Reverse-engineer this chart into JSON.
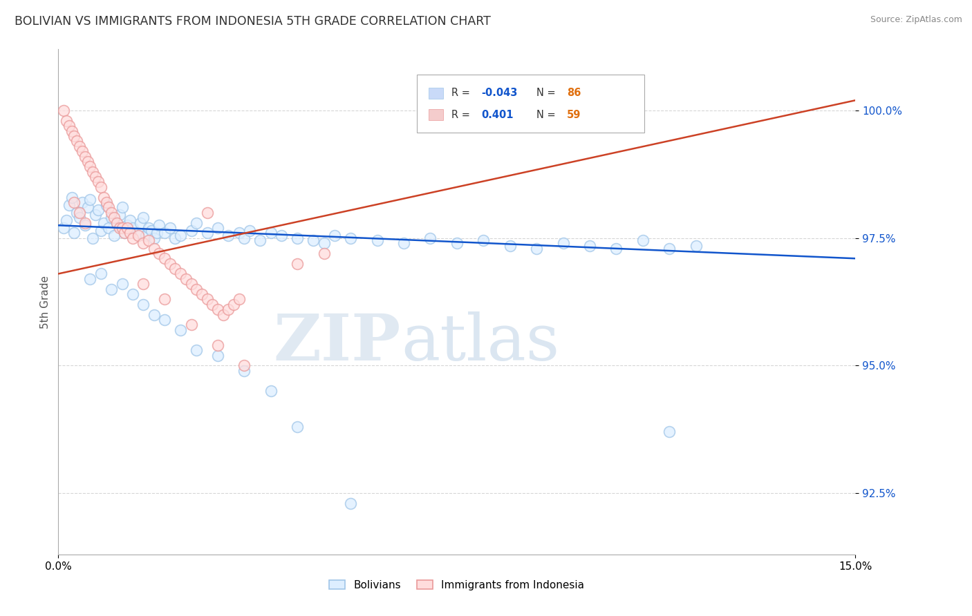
{
  "title": "BOLIVIAN VS IMMIGRANTS FROM INDONESIA 5TH GRADE CORRELATION CHART",
  "source": "Source: ZipAtlas.com",
  "ylabel": "5th Grade",
  "xlim": [
    0.0,
    15.0
  ],
  "ylim": [
    91.3,
    101.2
  ],
  "yticks": [
    92.5,
    95.0,
    97.5,
    100.0
  ],
  "ytick_labels": [
    "92.5%",
    "95.0%",
    "97.5%",
    "100.0%"
  ],
  "xtick_labels": [
    "0.0%",
    "15.0%"
  ],
  "blue_color": "#9fc5e8",
  "pink_color": "#ea9999",
  "blue_line_color": "#1155cc",
  "pink_line_color": "#cc4125",
  "R_blue": -0.043,
  "N_blue": 86,
  "R_pink": 0.401,
  "N_pink": 59,
  "legend_blue_label": "Bolivians",
  "legend_pink_label": "Immigrants from Indonesia",
  "watermark_zip": "ZIP",
  "watermark_atlas": "atlas",
  "blue_line_endpoints": [
    [
      0.0,
      97.75
    ],
    [
      15.0,
      97.1
    ]
  ],
  "pink_line_endpoints": [
    [
      0.0,
      96.8
    ],
    [
      15.0,
      100.2
    ]
  ],
  "blue_scatter": [
    [
      0.1,
      97.7
    ],
    [
      0.15,
      97.85
    ],
    [
      0.2,
      98.15
    ],
    [
      0.25,
      98.3
    ],
    [
      0.3,
      97.6
    ],
    [
      0.35,
      98.0
    ],
    [
      0.4,
      97.9
    ],
    [
      0.45,
      98.2
    ],
    [
      0.5,
      97.75
    ],
    [
      0.55,
      98.1
    ],
    [
      0.6,
      98.25
    ],
    [
      0.65,
      97.5
    ],
    [
      0.7,
      97.95
    ],
    [
      0.75,
      98.05
    ],
    [
      0.8,
      97.65
    ],
    [
      0.85,
      97.8
    ],
    [
      0.9,
      98.15
    ],
    [
      0.95,
      97.7
    ],
    [
      1.0,
      97.9
    ],
    [
      1.05,
      97.55
    ],
    [
      1.1,
      97.8
    ],
    [
      1.15,
      97.95
    ],
    [
      1.2,
      98.1
    ],
    [
      1.25,
      97.6
    ],
    [
      1.3,
      97.75
    ],
    [
      1.35,
      97.85
    ],
    [
      1.4,
      97.7
    ],
    [
      1.5,
      97.6
    ],
    [
      1.55,
      97.8
    ],
    [
      1.6,
      97.9
    ],
    [
      1.65,
      97.55
    ],
    [
      1.7,
      97.7
    ],
    [
      1.75,
      97.65
    ],
    [
      1.8,
      97.5
    ],
    [
      1.85,
      97.6
    ],
    [
      1.9,
      97.75
    ],
    [
      2.0,
      97.6
    ],
    [
      2.1,
      97.7
    ],
    [
      2.2,
      97.5
    ],
    [
      2.3,
      97.55
    ],
    [
      2.5,
      97.65
    ],
    [
      2.6,
      97.8
    ],
    [
      2.8,
      97.6
    ],
    [
      3.0,
      97.7
    ],
    [
      3.2,
      97.55
    ],
    [
      3.4,
      97.6
    ],
    [
      3.5,
      97.5
    ],
    [
      3.6,
      97.65
    ],
    [
      3.8,
      97.45
    ],
    [
      4.0,
      97.6
    ],
    [
      4.2,
      97.55
    ],
    [
      4.5,
      97.5
    ],
    [
      4.8,
      97.45
    ],
    [
      5.0,
      97.4
    ],
    [
      5.2,
      97.55
    ],
    [
      5.5,
      97.5
    ],
    [
      6.0,
      97.45
    ],
    [
      6.5,
      97.4
    ],
    [
      7.0,
      97.5
    ],
    [
      7.5,
      97.4
    ],
    [
      8.0,
      97.45
    ],
    [
      8.5,
      97.35
    ],
    [
      9.0,
      97.3
    ],
    [
      9.5,
      97.4
    ],
    [
      10.0,
      97.35
    ],
    [
      10.5,
      97.3
    ],
    [
      11.0,
      97.45
    ],
    [
      11.5,
      97.3
    ],
    [
      12.0,
      97.35
    ],
    [
      0.6,
      96.7
    ],
    [
      0.8,
      96.8
    ],
    [
      1.0,
      96.5
    ],
    [
      1.2,
      96.6
    ],
    [
      1.4,
      96.4
    ],
    [
      1.6,
      96.2
    ],
    [
      1.8,
      96.0
    ],
    [
      2.0,
      95.9
    ],
    [
      2.3,
      95.7
    ],
    [
      2.6,
      95.3
    ],
    [
      3.0,
      95.2
    ],
    [
      3.5,
      94.9
    ],
    [
      4.0,
      94.5
    ],
    [
      4.5,
      93.8
    ],
    [
      5.5,
      92.3
    ],
    [
      11.5,
      93.7
    ]
  ],
  "pink_scatter": [
    [
      0.1,
      100.0
    ],
    [
      0.15,
      99.8
    ],
    [
      0.2,
      99.7
    ],
    [
      0.25,
      99.6
    ],
    [
      0.3,
      99.5
    ],
    [
      0.35,
      99.4
    ],
    [
      0.4,
      99.3
    ],
    [
      0.45,
      99.2
    ],
    [
      0.5,
      99.1
    ],
    [
      0.55,
      99.0
    ],
    [
      0.6,
      98.9
    ],
    [
      0.65,
      98.8
    ],
    [
      0.7,
      98.7
    ],
    [
      0.75,
      98.6
    ],
    [
      0.8,
      98.5
    ],
    [
      0.85,
      98.3
    ],
    [
      0.9,
      98.2
    ],
    [
      0.95,
      98.1
    ],
    [
      1.0,
      98.0
    ],
    [
      1.05,
      97.9
    ],
    [
      1.1,
      97.8
    ],
    [
      1.15,
      97.7
    ],
    [
      1.2,
      97.7
    ],
    [
      1.25,
      97.6
    ],
    [
      1.3,
      97.7
    ],
    [
      1.35,
      97.6
    ],
    [
      1.4,
      97.5
    ],
    [
      1.5,
      97.55
    ],
    [
      1.6,
      97.4
    ],
    [
      1.7,
      97.45
    ],
    [
      1.8,
      97.3
    ],
    [
      1.9,
      97.2
    ],
    [
      2.0,
      97.1
    ],
    [
      2.1,
      97.0
    ],
    [
      2.2,
      96.9
    ],
    [
      2.3,
      96.8
    ],
    [
      2.4,
      96.7
    ],
    [
      2.5,
      96.6
    ],
    [
      2.6,
      96.5
    ],
    [
      2.7,
      96.4
    ],
    [
      2.8,
      96.3
    ],
    [
      2.9,
      96.2
    ],
    [
      3.0,
      96.1
    ],
    [
      3.1,
      96.0
    ],
    [
      3.2,
      96.1
    ],
    [
      3.3,
      96.2
    ],
    [
      3.4,
      96.3
    ],
    [
      4.5,
      97.0
    ],
    [
      5.0,
      97.2
    ],
    [
      7.0,
      99.8
    ],
    [
      2.8,
      98.0
    ],
    [
      0.3,
      98.2
    ],
    [
      0.4,
      98.0
    ],
    [
      0.5,
      97.8
    ],
    [
      1.6,
      96.6
    ],
    [
      2.0,
      96.3
    ],
    [
      2.5,
      95.8
    ],
    [
      3.0,
      95.4
    ],
    [
      3.5,
      95.0
    ]
  ]
}
